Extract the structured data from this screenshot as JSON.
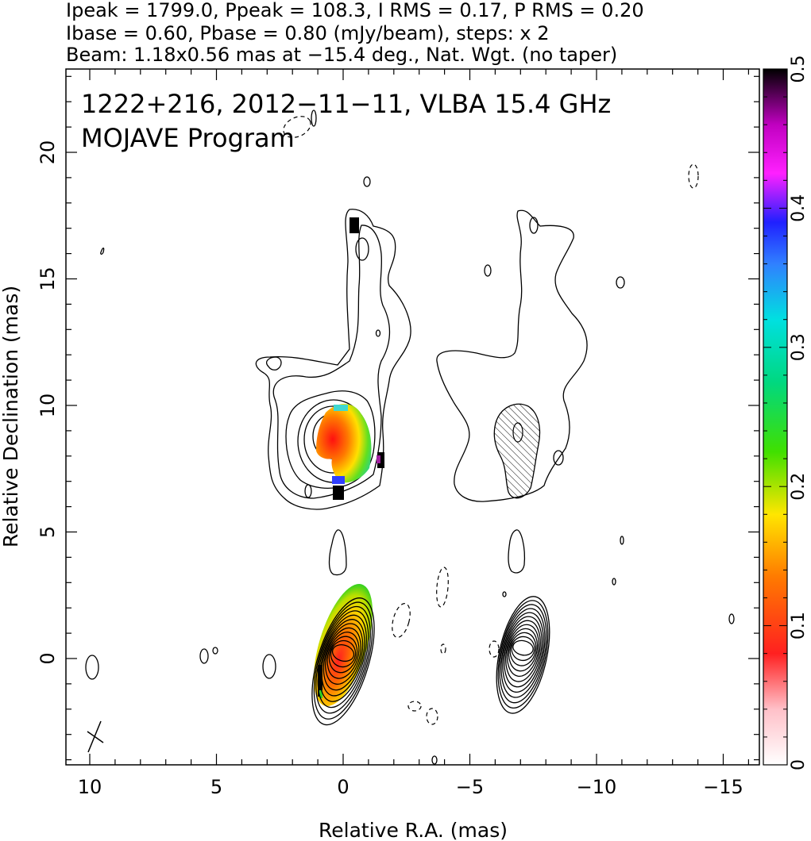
{
  "header": {
    "line1": "Ipeak = 1799.0, Ppeak = 108.3, I RMS = 0.17, P RMS = 0.20",
    "line2": "Ibase = 0.60, Pbase = 0.80 (mJy/beam), steps: x 2",
    "line3": "Beam: 1.18x0.56 mas at −15.4 deg., Nat. Wgt. (no taper)"
  },
  "annotation": {
    "source_line": "1222+216, 2012−11−11, VLBA 15.4 GHz",
    "program_line": "MOJAVE Program"
  },
  "chart_data": {
    "type": "contour",
    "xlabel": "Relative R.A. (mas)",
    "ylabel": "Relative Declination (mas)",
    "xlim": [
      11,
      -17
    ],
    "ylim": [
      -4,
      23.5
    ],
    "x_ticks": [
      {
        "value": 10,
        "label": "10"
      },
      {
        "value": 5,
        "label": "5"
      },
      {
        "value": 0,
        "label": "0"
      },
      {
        "value": -5,
        "label": "−5"
      },
      {
        "value": -10,
        "label": "−10"
      },
      {
        "value": -15,
        "label": "−15"
      }
    ],
    "y_ticks": [
      {
        "value": 0,
        "label": "0"
      },
      {
        "value": 5,
        "label": "5"
      },
      {
        "value": 10,
        "label": "10"
      },
      {
        "value": 15,
        "label": "15"
      },
      {
        "value": 20,
        "label": "20"
      }
    ],
    "colorbar": {
      "range": [
        0,
        0.5
      ],
      "ticks": [
        {
          "value": 0,
          "label": "0"
        },
        {
          "value": 0.1,
          "label": "0.1"
        },
        {
          "value": 0.2,
          "label": "0.2"
        },
        {
          "value": 0.3,
          "label": "0.3"
        },
        {
          "value": 0.4,
          "label": "0.4"
        },
        {
          "value": 0.5,
          "label": "0.5"
        }
      ]
    },
    "panels": [
      {
        "name": "total-intensity",
        "core": {
          "x": 0,
          "y": 0.2
        }
      },
      {
        "name": "polarized-intensity",
        "core": {
          "x": -7.1,
          "y": 0.3
        }
      }
    ],
    "core_contour_levels": [
      0.6,
      1.2,
      2.4,
      4.8,
      9.6,
      19.2,
      38.4,
      76.8,
      153.6,
      307.2,
      614.4,
      1228.8
    ]
  }
}
